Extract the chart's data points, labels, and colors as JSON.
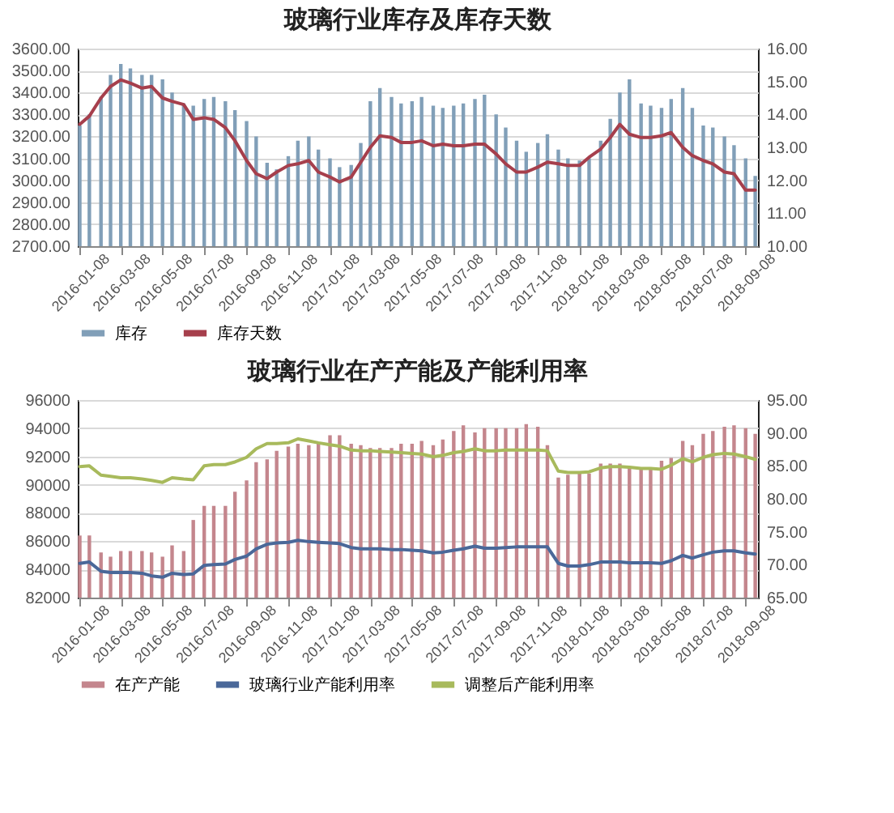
{
  "chart_data": [
    {
      "type": "bar",
      "title": "玻璃行业库存及库存天数",
      "x": [
        "2016-01-08",
        "2016-01-22",
        "2016-02-08",
        "2016-02-22",
        "2016-03-08",
        "2016-03-22",
        "2016-04-08",
        "2016-04-22",
        "2016-05-08",
        "2016-05-22",
        "2016-06-08",
        "2016-06-22",
        "2016-07-08",
        "2016-07-22",
        "2016-08-08",
        "2016-08-22",
        "2016-09-08",
        "2016-09-22",
        "2016-10-08",
        "2016-10-22",
        "2016-11-08",
        "2016-11-22",
        "2016-12-08",
        "2016-12-22",
        "2017-01-08",
        "2017-01-22",
        "2017-02-08",
        "2017-02-22",
        "2017-03-08",
        "2017-03-22",
        "2017-04-08",
        "2017-04-22",
        "2017-05-08",
        "2017-05-22",
        "2017-06-08",
        "2017-06-22",
        "2017-07-08",
        "2017-07-22",
        "2017-08-08",
        "2017-08-22",
        "2017-09-08",
        "2017-09-22",
        "2017-10-08",
        "2017-10-22",
        "2017-11-08",
        "2017-11-22",
        "2017-12-08",
        "2017-12-22",
        "2018-01-08",
        "2018-01-22",
        "2018-02-08",
        "2018-02-22",
        "2018-03-08",
        "2018-03-22",
        "2018-04-08",
        "2018-04-22",
        "2018-05-08",
        "2018-05-22",
        "2018-06-08",
        "2018-06-22",
        "2018-07-08",
        "2018-07-22",
        "2018-08-08",
        "2018-08-22",
        "2018-09-08",
        "2018-09-22"
      ],
      "xlim": [
        "2016-01-05",
        "2018-09-26"
      ],
      "xticks": [
        "2016-01-08",
        "2016-03-08",
        "2016-05-08",
        "2016-07-08",
        "2016-09-08",
        "2016-11-08",
        "2017-01-08",
        "2017-03-08",
        "2017-05-08",
        "2017-07-08",
        "2017-09-08",
        "2017-11-08",
        "2018-01-08",
        "2018-03-08",
        "2018-05-08",
        "2018-07-08",
        "2018-09-08"
      ],
      "ylim": [
        2700,
        3600
      ],
      "yticks": [
        {
          "value": 2700,
          "label": "2700.00"
        },
        {
          "value": 2800,
          "label": "2800.00"
        },
        {
          "value": 2900,
          "label": "2900.00"
        },
        {
          "value": 3000,
          "label": "3000.00"
        },
        {
          "value": 3100,
          "label": "3100.00"
        },
        {
          "value": 3200,
          "label": "3200.00"
        },
        {
          "value": 3300,
          "label": "3300.00"
        },
        {
          "value": 3400,
          "label": "3400.00"
        },
        {
          "value": 3500,
          "label": "3500.00"
        },
        {
          "value": 3600,
          "label": "3600.00"
        }
      ],
      "y2lim": [
        10,
        16
      ],
      "y2ticks": [
        {
          "value": 10,
          "label": "10.00"
        },
        {
          "value": 11,
          "label": "11.00"
        },
        {
          "value": 12,
          "label": "12.00"
        },
        {
          "value": 13,
          "label": "13.00"
        },
        {
          "value": 14,
          "label": "14.00"
        },
        {
          "value": 15,
          "label": "15.00"
        },
        {
          "value": 16,
          "label": "16.00"
        }
      ],
      "grid": "y",
      "legend": "bottom",
      "series": [
        {
          "name": "库存",
          "color": "#819fb8",
          "values": [
            3250,
            3300,
            3380,
            3480,
            3530,
            3510,
            3480,
            3480,
            3460,
            3400,
            3350,
            3340,
            3370,
            3380,
            3360,
            3320,
            3270,
            3200,
            3080,
            3050,
            3110,
            3180,
            3200,
            3140,
            3100,
            3060,
            3070,
            3170,
            3360,
            3420,
            3380,
            3350,
            3360,
            3380,
            3340,
            3330,
            3340,
            3350,
            3370,
            3390,
            3300,
            3240,
            3180,
            3130,
            3170,
            3210,
            3140,
            3100,
            3090,
            3100,
            3180,
            3280,
            3400,
            3460,
            3350,
            3340,
            3330,
            3370,
            3420,
            3330,
            3250,
            3240,
            3200,
            3160,
            3100,
            3020
          ]
        },
        {
          "name": "库存天数",
          "type": "line",
          "axis": "y2",
          "color": "#a63f4c",
          "values": [
            13.7,
            13.95,
            14.5,
            14.85,
            15.05,
            14.95,
            14.8,
            14.85,
            14.5,
            14.4,
            14.3,
            13.85,
            13.9,
            13.85,
            13.6,
            13.2,
            12.6,
            12.2,
            12.05,
            12.25,
            12.45,
            12.5,
            12.6,
            12.25,
            12.1,
            11.95,
            12.1,
            12.55,
            13.0,
            13.35,
            13.3,
            13.15,
            13.15,
            13.2,
            13.05,
            13.1,
            13.05,
            13.05,
            13.1,
            13.1,
            12.8,
            12.5,
            12.25,
            12.25,
            12.4,
            12.55,
            12.5,
            12.45,
            12.45,
            12.7,
            12.95,
            13.3,
            13.7,
            13.4,
            13.3,
            13.3,
            13.35,
            13.45,
            13.0,
            12.75,
            12.6,
            12.5,
            12.25,
            12.2,
            11.7,
            11.7
          ]
        }
      ]
    },
    {
      "type": "bar",
      "title": "玻璃行业在产产能及产能利用率",
      "x": [
        "2016-01-08",
        "2016-01-22",
        "2016-02-08",
        "2016-02-22",
        "2016-03-08",
        "2016-03-22",
        "2016-04-08",
        "2016-04-22",
        "2016-05-08",
        "2016-05-22",
        "2016-06-08",
        "2016-06-22",
        "2016-07-08",
        "2016-07-22",
        "2016-08-08",
        "2016-08-22",
        "2016-09-08",
        "2016-09-22",
        "2016-10-08",
        "2016-10-22",
        "2016-11-08",
        "2016-11-22",
        "2016-12-08",
        "2016-12-22",
        "2017-01-08",
        "2017-01-22",
        "2017-02-08",
        "2017-02-22",
        "2017-03-08",
        "2017-03-22",
        "2017-04-08",
        "2017-04-22",
        "2017-05-08",
        "2017-05-22",
        "2017-06-08",
        "2017-06-22",
        "2017-07-08",
        "2017-07-22",
        "2017-08-08",
        "2017-08-22",
        "2017-09-08",
        "2017-09-22",
        "2017-10-08",
        "2017-10-22",
        "2017-11-08",
        "2017-11-22",
        "2017-12-08",
        "2017-12-22",
        "2018-01-08",
        "2018-01-22",
        "2018-02-08",
        "2018-02-22",
        "2018-03-08",
        "2018-03-22",
        "2018-04-08",
        "2018-04-22",
        "2018-05-08",
        "2018-05-22",
        "2018-06-08",
        "2018-06-22",
        "2018-07-08",
        "2018-07-22",
        "2018-08-08",
        "2018-08-22",
        "2018-09-08",
        "2018-09-22"
      ],
      "xlim": [
        "2016-01-05",
        "2018-09-26"
      ],
      "xticks": [
        "2016-01-08",
        "2016-03-08",
        "2016-05-08",
        "2016-07-08",
        "2016-09-08",
        "2016-11-08",
        "2017-01-08",
        "2017-03-08",
        "2017-05-08",
        "2017-07-08",
        "2017-09-08",
        "2017-11-08",
        "2018-01-08",
        "2018-03-08",
        "2018-05-08",
        "2018-07-08",
        "2018-09-08"
      ],
      "ylim": [
        82000,
        96000
      ],
      "yticks": [
        82000,
        84000,
        86000,
        88000,
        90000,
        92000,
        94000,
        96000
      ],
      "y2lim": [
        65,
        95
      ],
      "y2ticks": [
        {
          "value": 65,
          "label": "65.00"
        },
        {
          "value": 70,
          "label": "70.00"
        },
        {
          "value": 75,
          "label": "75.00"
        },
        {
          "value": 80,
          "label": "80.00"
        },
        {
          "value": 85,
          "label": "85.00"
        },
        {
          "value": 90,
          "label": "90.00"
        },
        {
          "value": 95,
          "label": "95.00"
        }
      ],
      "grid": "y",
      "legend": "bottom",
      "series": [
        {
          "name": "在产产能",
          "color": "#c4868d",
          "values": [
            86400,
            86400,
            85200,
            84900,
            85300,
            85300,
            85300,
            85200,
            84900,
            85700,
            85300,
            87500,
            88500,
            88500,
            88500,
            89500,
            90300,
            91600,
            91800,
            92400,
            92700,
            92900,
            92800,
            93000,
            93500,
            93500,
            92900,
            92800,
            92600,
            92600,
            92600,
            92900,
            92900,
            93100,
            92800,
            93200,
            93800,
            94200,
            93700,
            94000,
            94000,
            94000,
            94000,
            94300,
            94100,
            92800,
            90500,
            90700,
            90800,
            90800,
            91500,
            91500,
            91500,
            91300,
            91200,
            91200,
            91700,
            91900,
            93100,
            92800,
            93600,
            93800,
            94100,
            94200,
            94000,
            93600
          ]
        },
        {
          "name": "玻璃行业产能利用率",
          "type": "line",
          "axis": "y2",
          "color": "#4a6899",
          "values": [
            70.2,
            70.4,
            69.0,
            68.8,
            68.8,
            68.8,
            68.7,
            68.3,
            68.1,
            68.7,
            68.5,
            68.6,
            69.9,
            70.0,
            70.1,
            70.8,
            71.3,
            72.4,
            73.1,
            73.3,
            73.4,
            73.7,
            73.5,
            73.4,
            73.3,
            73.2,
            72.6,
            72.4,
            72.4,
            72.4,
            72.3,
            72.3,
            72.2,
            72.1,
            71.8,
            71.9,
            72.2,
            72.4,
            72.8,
            72.5,
            72.5,
            72.6,
            72.7,
            72.7,
            72.7,
            72.7,
            70.2,
            69.8,
            69.8,
            70.0,
            70.4,
            70.4,
            70.4,
            70.3,
            70.3,
            70.3,
            70.2,
            70.6,
            71.4,
            71.0,
            71.5,
            71.9,
            72.1,
            72.1,
            71.8,
            71.6
          ]
        },
        {
          "name": "调整后产能利用率",
          "type": "line",
          "axis": "y2",
          "color": "#a8ba5c",
          "values": [
            84.9,
            85.0,
            83.6,
            83.4,
            83.2,
            83.2,
            83.0,
            82.8,
            82.5,
            83.2,
            83.0,
            82.9,
            85.0,
            85.2,
            85.2,
            85.6,
            86.3,
            87.6,
            88.4,
            88.4,
            88.5,
            89.1,
            88.8,
            88.5,
            88.2,
            88.0,
            87.4,
            87.3,
            87.3,
            87.2,
            87.1,
            87.0,
            86.9,
            86.8,
            86.4,
            86.6,
            87.0,
            87.2,
            87.6,
            87.3,
            87.3,
            87.4,
            87.4,
            87.4,
            87.4,
            87.3,
            84.2,
            84.0,
            84.0,
            84.1,
            84.7,
            84.9,
            84.9,
            84.8,
            84.6,
            84.6,
            84.5,
            85.1,
            86.1,
            85.6,
            86.3,
            86.7,
            86.9,
            86.8,
            86.4,
            86.0
          ]
        }
      ]
    }
  ]
}
